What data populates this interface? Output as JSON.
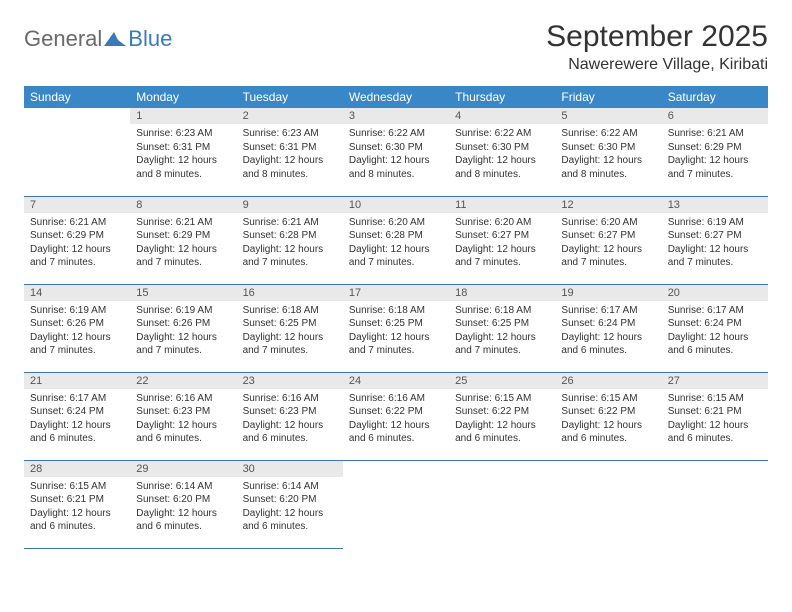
{
  "brand": {
    "part1": "General",
    "part2": "Blue"
  },
  "title": "September 2025",
  "location": "Nawerewere Village, Kiribati",
  "colors": {
    "header_bg": "#3a87c8",
    "header_text": "#ffffff",
    "daynum_bg": "#e9e9e9",
    "cell_border": "#3a7ab8",
    "logo_gray": "#6a6a6a",
    "logo_blue": "#3a7ab8"
  },
  "weekdays": [
    "Sunday",
    "Monday",
    "Tuesday",
    "Wednesday",
    "Thursday",
    "Friday",
    "Saturday"
  ],
  "layout": {
    "weeks": 5,
    "first_weekday_index": 1,
    "days_in_month": 30
  },
  "days": {
    "1": {
      "sunrise": "Sunrise: 6:23 AM",
      "sunset": "Sunset: 6:31 PM",
      "daylight": "Daylight: 12 hours and 8 minutes."
    },
    "2": {
      "sunrise": "Sunrise: 6:23 AM",
      "sunset": "Sunset: 6:31 PM",
      "daylight": "Daylight: 12 hours and 8 minutes."
    },
    "3": {
      "sunrise": "Sunrise: 6:22 AM",
      "sunset": "Sunset: 6:30 PM",
      "daylight": "Daylight: 12 hours and 8 minutes."
    },
    "4": {
      "sunrise": "Sunrise: 6:22 AM",
      "sunset": "Sunset: 6:30 PM",
      "daylight": "Daylight: 12 hours and 8 minutes."
    },
    "5": {
      "sunrise": "Sunrise: 6:22 AM",
      "sunset": "Sunset: 6:30 PM",
      "daylight": "Daylight: 12 hours and 8 minutes."
    },
    "6": {
      "sunrise": "Sunrise: 6:21 AM",
      "sunset": "Sunset: 6:29 PM",
      "daylight": "Daylight: 12 hours and 7 minutes."
    },
    "7": {
      "sunrise": "Sunrise: 6:21 AM",
      "sunset": "Sunset: 6:29 PM",
      "daylight": "Daylight: 12 hours and 7 minutes."
    },
    "8": {
      "sunrise": "Sunrise: 6:21 AM",
      "sunset": "Sunset: 6:29 PM",
      "daylight": "Daylight: 12 hours and 7 minutes."
    },
    "9": {
      "sunrise": "Sunrise: 6:21 AM",
      "sunset": "Sunset: 6:28 PM",
      "daylight": "Daylight: 12 hours and 7 minutes."
    },
    "10": {
      "sunrise": "Sunrise: 6:20 AM",
      "sunset": "Sunset: 6:28 PM",
      "daylight": "Daylight: 12 hours and 7 minutes."
    },
    "11": {
      "sunrise": "Sunrise: 6:20 AM",
      "sunset": "Sunset: 6:27 PM",
      "daylight": "Daylight: 12 hours and 7 minutes."
    },
    "12": {
      "sunrise": "Sunrise: 6:20 AM",
      "sunset": "Sunset: 6:27 PM",
      "daylight": "Daylight: 12 hours and 7 minutes."
    },
    "13": {
      "sunrise": "Sunrise: 6:19 AM",
      "sunset": "Sunset: 6:27 PM",
      "daylight": "Daylight: 12 hours and 7 minutes."
    },
    "14": {
      "sunrise": "Sunrise: 6:19 AM",
      "sunset": "Sunset: 6:26 PM",
      "daylight": "Daylight: 12 hours and 7 minutes."
    },
    "15": {
      "sunrise": "Sunrise: 6:19 AM",
      "sunset": "Sunset: 6:26 PM",
      "daylight": "Daylight: 12 hours and 7 minutes."
    },
    "16": {
      "sunrise": "Sunrise: 6:18 AM",
      "sunset": "Sunset: 6:25 PM",
      "daylight": "Daylight: 12 hours and 7 minutes."
    },
    "17": {
      "sunrise": "Sunrise: 6:18 AM",
      "sunset": "Sunset: 6:25 PM",
      "daylight": "Daylight: 12 hours and 7 minutes."
    },
    "18": {
      "sunrise": "Sunrise: 6:18 AM",
      "sunset": "Sunset: 6:25 PM",
      "daylight": "Daylight: 12 hours and 7 minutes."
    },
    "19": {
      "sunrise": "Sunrise: 6:17 AM",
      "sunset": "Sunset: 6:24 PM",
      "daylight": "Daylight: 12 hours and 6 minutes."
    },
    "20": {
      "sunrise": "Sunrise: 6:17 AM",
      "sunset": "Sunset: 6:24 PM",
      "daylight": "Daylight: 12 hours and 6 minutes."
    },
    "21": {
      "sunrise": "Sunrise: 6:17 AM",
      "sunset": "Sunset: 6:24 PM",
      "daylight": "Daylight: 12 hours and 6 minutes."
    },
    "22": {
      "sunrise": "Sunrise: 6:16 AM",
      "sunset": "Sunset: 6:23 PM",
      "daylight": "Daylight: 12 hours and 6 minutes."
    },
    "23": {
      "sunrise": "Sunrise: 6:16 AM",
      "sunset": "Sunset: 6:23 PM",
      "daylight": "Daylight: 12 hours and 6 minutes."
    },
    "24": {
      "sunrise": "Sunrise: 6:16 AM",
      "sunset": "Sunset: 6:22 PM",
      "daylight": "Daylight: 12 hours and 6 minutes."
    },
    "25": {
      "sunrise": "Sunrise: 6:15 AM",
      "sunset": "Sunset: 6:22 PM",
      "daylight": "Daylight: 12 hours and 6 minutes."
    },
    "26": {
      "sunrise": "Sunrise: 6:15 AM",
      "sunset": "Sunset: 6:22 PM",
      "daylight": "Daylight: 12 hours and 6 minutes."
    },
    "27": {
      "sunrise": "Sunrise: 6:15 AM",
      "sunset": "Sunset: 6:21 PM",
      "daylight": "Daylight: 12 hours and 6 minutes."
    },
    "28": {
      "sunrise": "Sunrise: 6:15 AM",
      "sunset": "Sunset: 6:21 PM",
      "daylight": "Daylight: 12 hours and 6 minutes."
    },
    "29": {
      "sunrise": "Sunrise: 6:14 AM",
      "sunset": "Sunset: 6:20 PM",
      "daylight": "Daylight: 12 hours and 6 minutes."
    },
    "30": {
      "sunrise": "Sunrise: 6:14 AM",
      "sunset": "Sunset: 6:20 PM",
      "daylight": "Daylight: 12 hours and 6 minutes."
    }
  }
}
